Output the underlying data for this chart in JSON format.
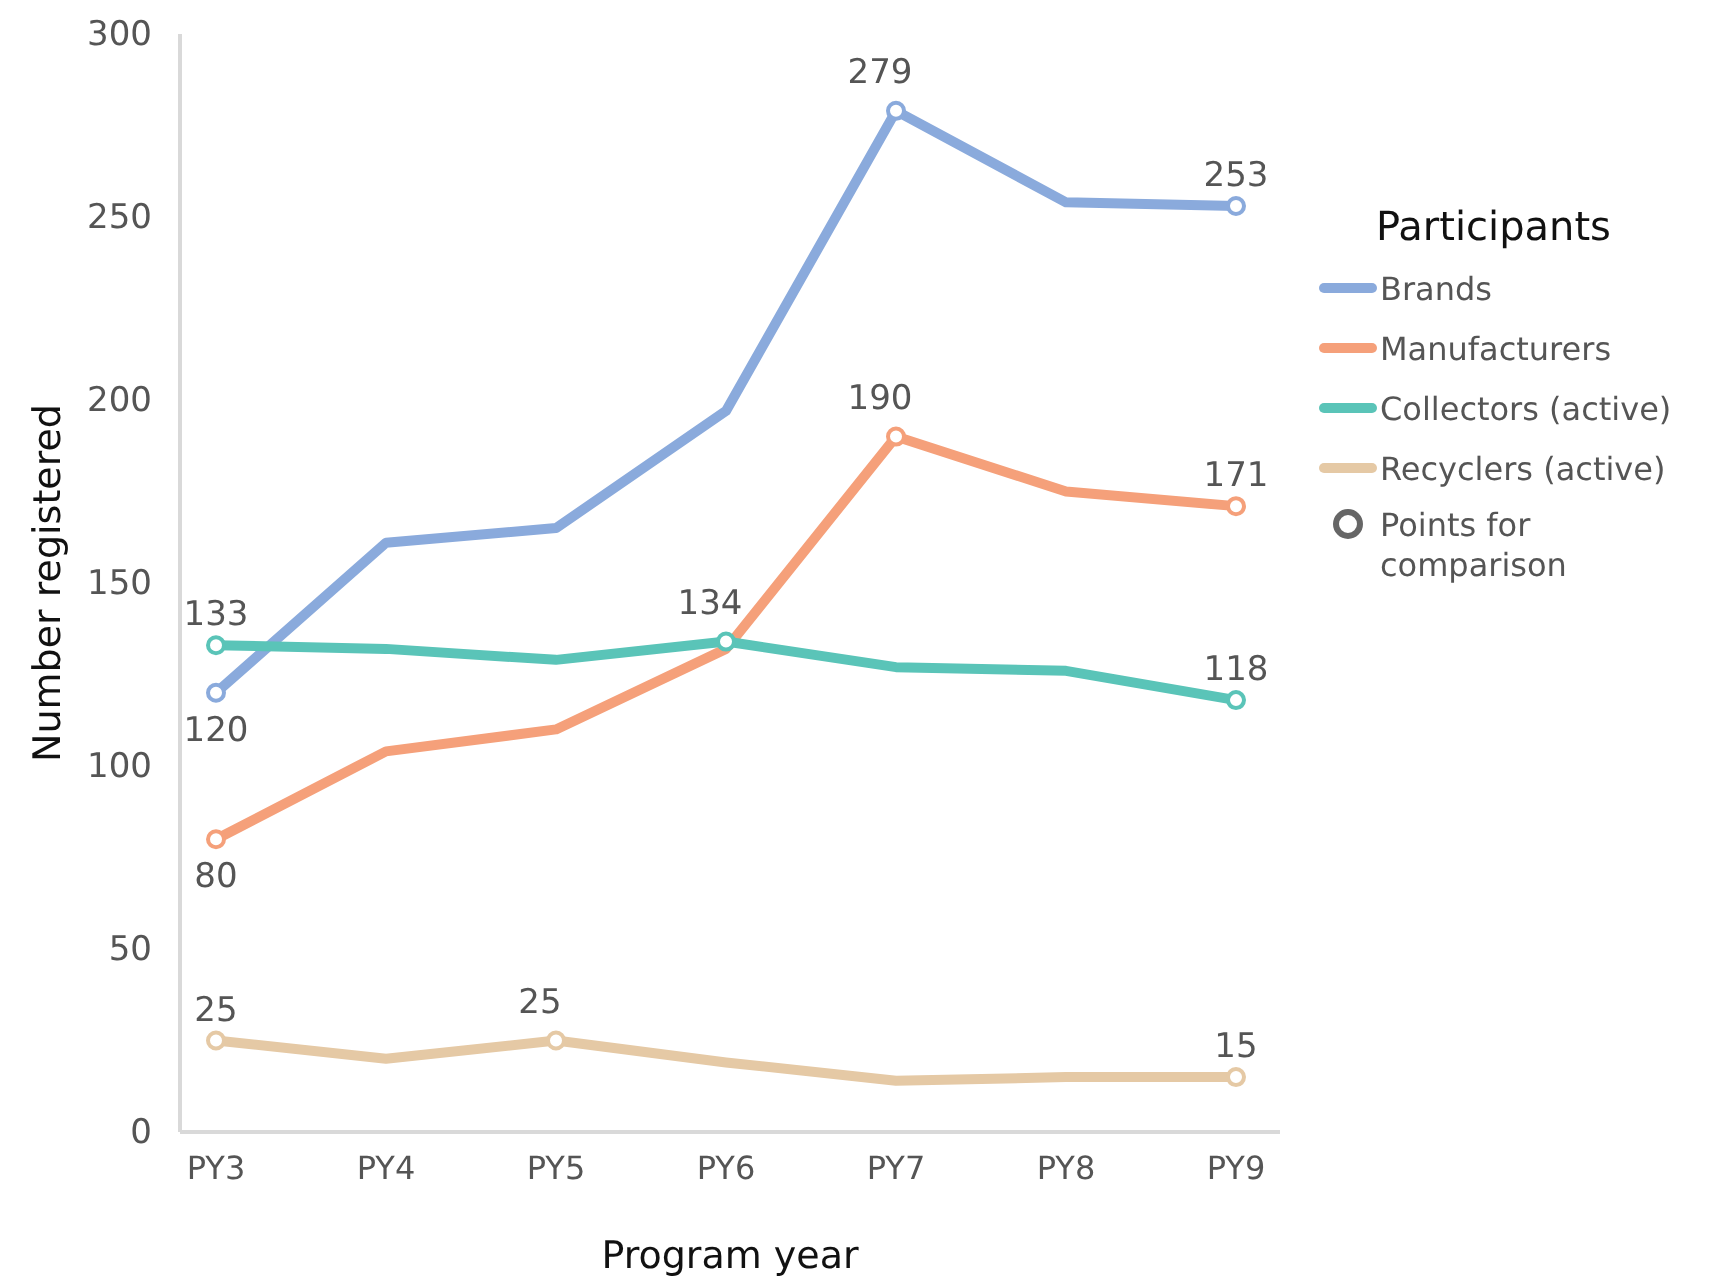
{
  "chart_data": {
    "type": "line",
    "xlabel": "Program year",
    "ylabel": "Number registered",
    "legend_title": "Participants",
    "categories": [
      "PY3",
      "PY4",
      "PY5",
      "PY6",
      "PY7",
      "PY8",
      "PY9"
    ],
    "series": [
      {
        "name": "Brands",
        "color": "#8aaadc",
        "values": [
          120,
          161,
          165,
          197,
          279,
          254,
          253
        ],
        "value_labels": [
          "120",
          null,
          null,
          null,
          "279",
          null,
          "253"
        ]
      },
      {
        "name": "Manufacturers",
        "color": "#f5a07a",
        "values": [
          80,
          104,
          110,
          132,
          190,
          175,
          171
        ],
        "value_labels": [
          "80",
          null,
          null,
          null,
          "190",
          null,
          "171"
        ]
      },
      {
        "name": "Collectors (active)",
        "color": "#5ac4b8",
        "values": [
          133,
          132,
          129,
          134,
          127,
          126,
          118
        ],
        "value_labels": [
          "133",
          null,
          null,
          "134",
          null,
          null,
          "118"
        ]
      },
      {
        "name": "Recyclers (active)",
        "color": "#e5c9a5",
        "values": [
          25,
          20,
          25,
          19,
          14,
          15,
          15
        ],
        "value_labels": [
          "25",
          null,
          "25",
          null,
          null,
          null,
          "15"
        ]
      }
    ],
    "annotations": [
      "Points for comparison"
    ],
    "ylim": [
      0,
      300
    ],
    "yticks": [
      0,
      50,
      100,
      150,
      200,
      250,
      300
    ],
    "grid": false,
    "legend": "right",
    "line_style": "solid"
  }
}
